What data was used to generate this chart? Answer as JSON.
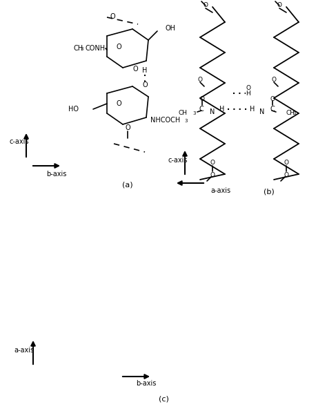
{
  "background_color": "#ffffff",
  "panels": {
    "a_label": "(a)",
    "b_label": "(b)",
    "c_label": "(c)"
  }
}
